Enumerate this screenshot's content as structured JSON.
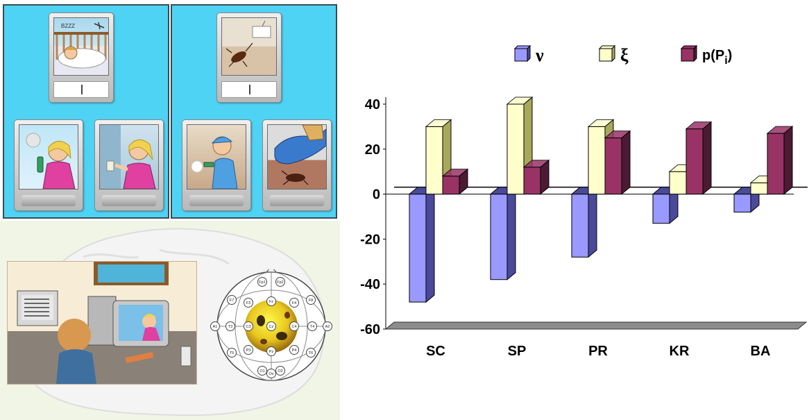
{
  "chart_data": {
    "type": "bar",
    "categories": [
      "SC",
      "SP",
      "PR",
      "KR",
      "BA"
    ],
    "series": [
      {
        "name": "ν",
        "values": [
          -48,
          -38,
          -28,
          -13,
          -8
        ],
        "color": "#9999ff",
        "side": "#4a4a9a"
      },
      {
        "name": "ξ",
        "values": [
          30,
          40,
          30,
          10,
          5
        ],
        "color": "#ffffcc",
        "side": "#a8a85a"
      },
      {
        "name": "p(Pi)",
        "values": [
          8,
          12,
          25,
          29,
          27
        ],
        "color": "#993366",
        "side": "#4d1a33"
      }
    ],
    "legend": {
      "items": [
        {
          "text": "ν",
          "sub": "",
          "color": "#9999ff",
          "side": "#4a4a9a"
        },
        {
          "text": "ξ",
          "sub": "",
          "color": "#ffffcc",
          "side": "#a8a85a"
        },
        {
          "text": "p(P",
          "sub": "i",
          "close": ")",
          "color": "#993366",
          "side": "#4d1a33"
        }
      ],
      "placement": "top"
    },
    "yticks": [
      "40",
      "20",
      "0",
      "-20",
      "-40",
      "-60"
    ],
    "ylim": [
      -60,
      40
    ],
    "title": "",
    "xlabel": "",
    "ylabel": ""
  },
  "illustration": {
    "panel_left": [
      "sleeping child with mosquito",
      "girl spraying insecticide",
      "girl plugging in device"
    ],
    "panel_right": [
      "cockroach on floor",
      "boy spraying insecticide",
      "shoe stepping on cockroach"
    ],
    "eeg_electrodes": [
      "Fp1",
      "Fp2",
      "F7",
      "F3",
      "Fz",
      "F4",
      "F8",
      "A1",
      "T3",
      "C3",
      "Cz",
      "C4",
      "T4",
      "A2",
      "T5",
      "P3",
      "Pz",
      "P4",
      "T6",
      "O1",
      "Oz",
      "O2"
    ]
  },
  "colors": {
    "panel": "#4fd3f4",
    "floor": "#808080"
  }
}
